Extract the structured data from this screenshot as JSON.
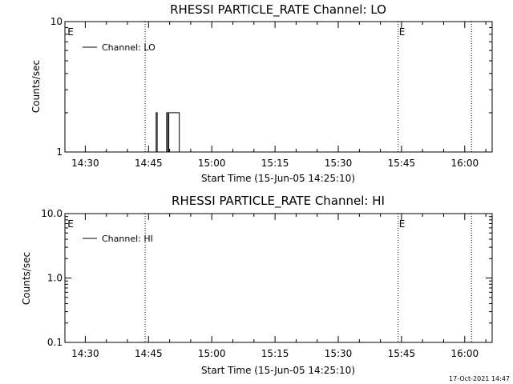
{
  "footer": {
    "timestamp": "17-Oct-2021 14:47"
  },
  "chart_data": [
    {
      "type": "line",
      "title": "RHESSI PARTICLE_RATE Channel: LO",
      "xlabel": "Start Time (15-Jun-05 14:25:10)",
      "ylabel": "Counts/sec",
      "x_tick_labels": [
        "14:30",
        "14:45",
        "15:00",
        "15:15",
        "15:30",
        "15:45",
        "16:00"
      ],
      "x_tick_minutes": [
        30,
        45,
        60,
        75,
        90,
        105,
        120
      ],
      "xlim_minutes": [
        25.17,
        126.5
      ],
      "y_scale": "log",
      "ylim": [
        1,
        10
      ],
      "y_tick_labels": [
        "1",
        "10"
      ],
      "y_tick_values": [
        1,
        10
      ],
      "markers": [
        {
          "label": "E",
          "x_minute": 25.6,
          "style": "none"
        },
        {
          "label": "",
          "x_minute": 44.2,
          "style": "dotted"
        },
        {
          "label": "E",
          "x_minute": 104.2,
          "style": "dotted"
        },
        {
          "label": "",
          "x_minute": 121.6,
          "style": "dotted"
        }
      ],
      "series": [
        {
          "name": "Channel: LO",
          "x_minutes": [
            46.8,
            46.8,
            47.05,
            47.05,
            47.3,
            47.3,
            49.3,
            49.3,
            49.55,
            49.55,
            49.8,
            49.8,
            50.05,
            50.05,
            50.5,
            50.5,
            52.3,
            52.3
          ],
          "y": [
            1,
            2,
            2,
            1,
            1,
            1,
            1,
            2,
            2,
            1,
            1,
            2,
            2,
            2,
            2,
            2,
            2,
            1
          ]
        }
      ]
    },
    {
      "type": "line",
      "title": "RHESSI PARTICLE_RATE Channel: HI",
      "xlabel": "Start Time (15-Jun-05 14:25:10)",
      "ylabel": "Counts/sec",
      "x_tick_labels": [
        "14:30",
        "14:45",
        "15:00",
        "15:15",
        "15:30",
        "15:45",
        "16:00"
      ],
      "x_tick_minutes": [
        30,
        45,
        60,
        75,
        90,
        105,
        120
      ],
      "xlim_minutes": [
        25.17,
        126.5
      ],
      "y_scale": "log",
      "ylim": [
        0.1,
        10
      ],
      "y_tick_labels": [
        "0.1",
        "1.0",
        "10.0"
      ],
      "y_tick_values": [
        0.1,
        1,
        10
      ],
      "markers": [
        {
          "label": "E",
          "x_minute": 25.6,
          "style": "none"
        },
        {
          "label": "",
          "x_minute": 44.2,
          "style": "dotted"
        },
        {
          "label": "E",
          "x_minute": 104.2,
          "style": "dotted"
        },
        {
          "label": "",
          "x_minute": 121.6,
          "style": "dotted"
        }
      ],
      "series": [
        {
          "name": "Channel: HI",
          "x_minutes": [],
          "y": []
        }
      ]
    }
  ]
}
